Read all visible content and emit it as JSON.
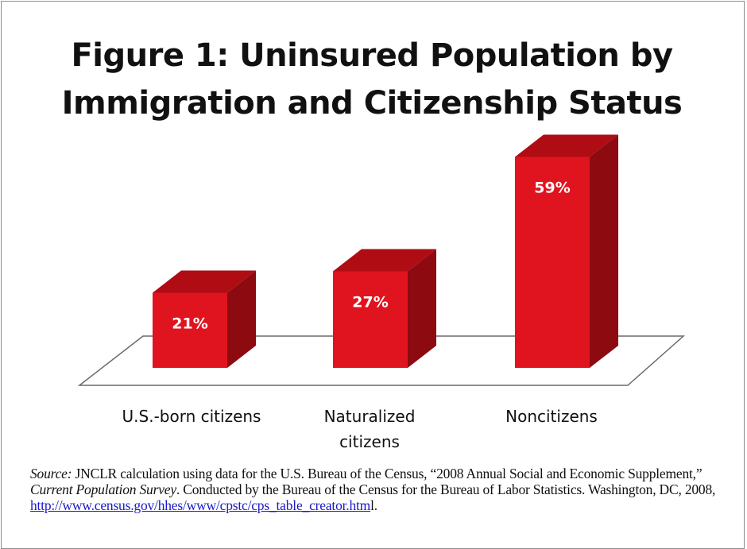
{
  "chart_data": {
    "type": "bar",
    "title": "Figure 1:  Uninsured Population by Immigration and Citizenship Status",
    "title_lines": [
      "Figure 1:  Uninsured Population by",
      "Immigration and Citizenship Status"
    ],
    "categories": [
      "U.S.-born citizens",
      "Naturalized citizens",
      "Noncitizens"
    ],
    "category_lines": [
      [
        "U.S.-born citizens"
      ],
      [
        "Naturalized",
        "citizens"
      ],
      [
        "Noncitizens"
      ]
    ],
    "values": [
      21,
      27,
      59
    ],
    "value_labels": [
      "21%",
      "27%",
      "59%"
    ],
    "unit": "%",
    "ylim": [
      0,
      60
    ],
    "grid": false,
    "legend": "none",
    "style": "3d",
    "colors": {
      "bar_front": "#e0141e",
      "bar_side": "#8c0a10",
      "bar_top": "#b00c14",
      "floor_stroke": "#6a6a6a"
    }
  },
  "source": {
    "label": "Source:",
    "text_parts": [
      "  JNCLR calculation using data for the U.S. Bureau of the Census, “2008 Annual Social and Economic Supplement,” ",
      "Current Population Survey",
      ".  Conducted by the Bureau of the Census for the Bureau of Labor Statistics. Washington, DC, 2008, "
    ],
    "url": "http://www.census.gov/hhes/www/cpstc/cps_table_creator.htm",
    "url_tail": "l."
  }
}
